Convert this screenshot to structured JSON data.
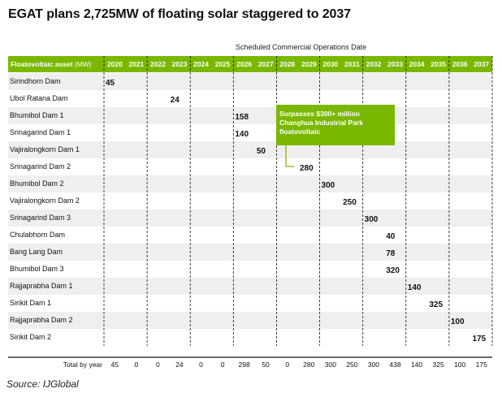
{
  "title": "EGAT plans 2,725MW of floating solar staggered to 2037",
  "subtitle": "Scheduled Commercial Operations Date",
  "source": "Source: IJGlobal",
  "colors": {
    "accent": "#7ab800",
    "row_alt": "#efefef"
  },
  "chart_data": {
    "type": "table",
    "header_label_bold": "Floatovoltaic asset",
    "header_label_unit": "(MW)",
    "years": [
      "2020",
      "2021",
      "2022",
      "2023",
      "2024",
      "2025",
      "2026",
      "2027",
      "2028",
      "2029",
      "2030",
      "2031",
      "2032",
      "2033",
      "2034",
      "2035",
      "2036",
      "2037"
    ],
    "rows": [
      {
        "asset": "Sirindhorn Dam",
        "year": "2020",
        "mw": 45
      },
      {
        "asset": "Ubol Ratana Dam",
        "year": "2023",
        "mw": 24
      },
      {
        "asset": "Bhumibol Dam 1",
        "year": "2026",
        "mw": 158
      },
      {
        "asset": "Srinagarind Dam 1",
        "year": "2026",
        "mw": 140
      },
      {
        "asset": "Vajiralongkorn Dam 1",
        "year": "2027",
        "mw": 50
      },
      {
        "asset": "Srinagarind Dam 2",
        "year": "2029",
        "mw": 280
      },
      {
        "asset": "Bhumibol Dam 2",
        "year": "2030",
        "mw": 300
      },
      {
        "asset": "Vajiralongkorn Dam 2",
        "year": "2031",
        "mw": 250
      },
      {
        "asset": "Srinagarind Dam 3",
        "year": "2032",
        "mw": 300
      },
      {
        "asset": "Chulabhorn Dam",
        "year": "2033",
        "mw": 40
      },
      {
        "asset": "Bang Lang Dam",
        "year": "2033",
        "mw": 78
      },
      {
        "asset": "Bhumibol Dam 3",
        "year": "2033",
        "mw": 320
      },
      {
        "asset": "Rajjaprabha Dam 1",
        "year": "2034",
        "mw": 140
      },
      {
        "asset": "Sirikit Dam 1",
        "year": "2035",
        "mw": 325
      },
      {
        "asset": "Rajjaprabha Dam 2",
        "year": "2036",
        "mw": 100
      },
      {
        "asset": "Sirikit Dam 2",
        "year": "2037",
        "mw": 175
      }
    ],
    "totals_label": "Total by year",
    "totals": [
      "45",
      "0",
      "0",
      "24",
      "0",
      "0",
      "298",
      "50",
      "0",
      "280",
      "300",
      "250",
      "300",
      "438",
      "140",
      "325",
      "100",
      "175"
    ],
    "callout": {
      "lines": [
        "Surpasses $300+ million",
        "Changhua Industrial Park",
        "floatovoltaic"
      ],
      "points_to": "Srinagarind Dam 2"
    }
  }
}
